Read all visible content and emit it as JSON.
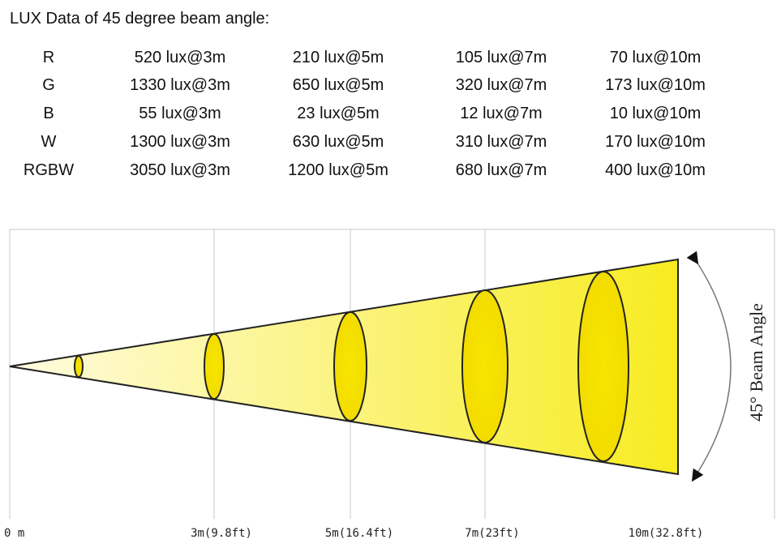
{
  "header": {
    "title": "LUX Data of 45 degree beam angle:"
  },
  "table": {
    "rows": [
      [
        "R",
        "520 lux@3m",
        "210 lux@5m",
        "105 lux@7m",
        "70 lux@10m"
      ],
      [
        "G",
        "1330 lux@3m",
        "650 lux@5m",
        "320 lux@7m",
        "173 lux@10m"
      ],
      [
        "B",
        "55 lux@3m",
        "23 lux@5m",
        "12 lux@7m",
        "10 lux@10m"
      ],
      [
        "W",
        "1300 lux@3m",
        "630 lux@5m",
        "310 lux@7m",
        "170 lux@10m"
      ],
      [
        "RGBW",
        "3050 lux@3m",
        "1200 lux@5m",
        "680 lux@7m",
        "400 lux@10m"
      ]
    ]
  },
  "diagram": {
    "distance_labels": [
      "0 m",
      "3m(9.8ft)",
      "5m(16.4ft)",
      "7m(23ft)",
      "10m(32.8ft)"
    ],
    "angle_label": "45° Beam Angle"
  }
}
